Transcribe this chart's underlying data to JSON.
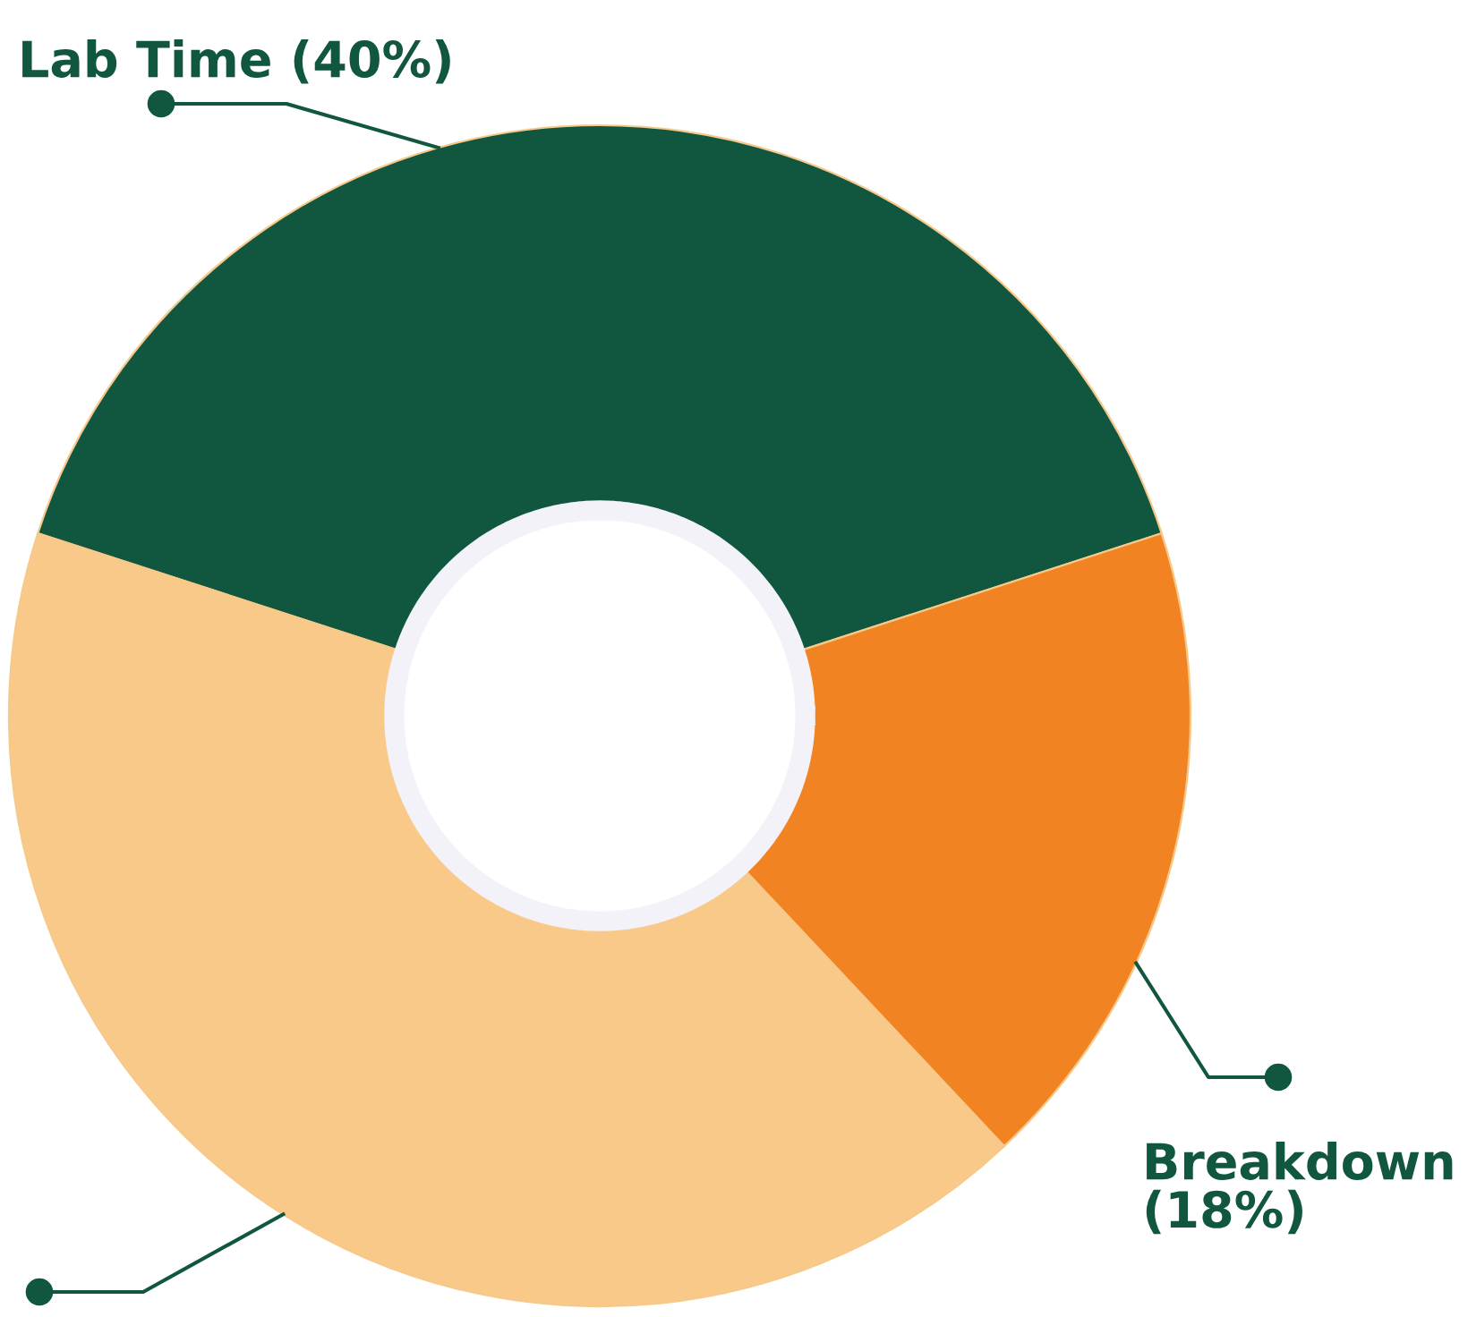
{
  "chart_data": {
    "type": "donut",
    "categories": [
      "Lab Time (40%)",
      "Breakdown (18%)",
      null
    ],
    "values": [
      40,
      18,
      42
    ],
    "colors": [
      "#11573f",
      "#f28322",
      "#f9c98a"
    ],
    "legend": false
  }
}
